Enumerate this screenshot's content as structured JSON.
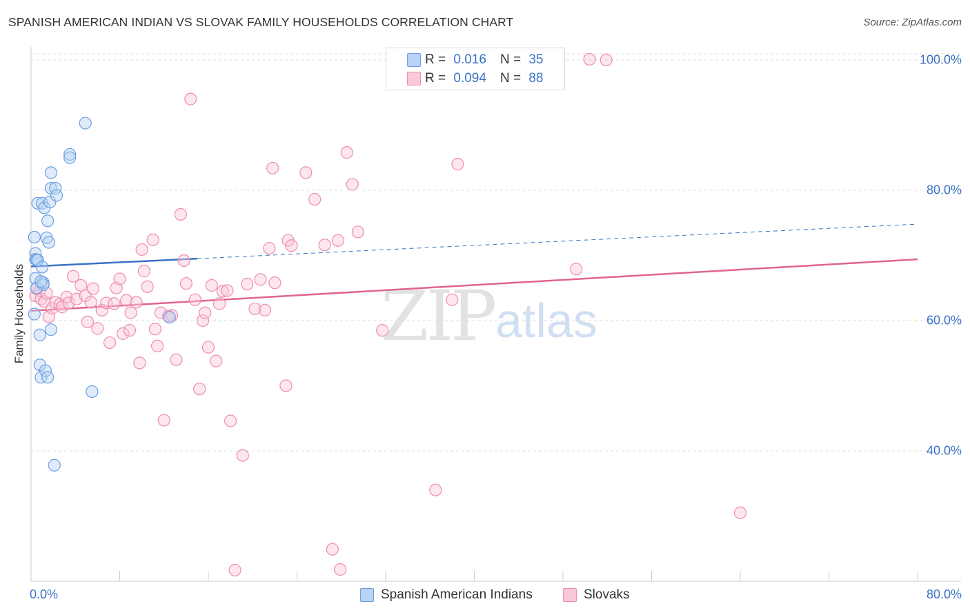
{
  "header": {
    "title": "SPANISH AMERICAN INDIAN VS SLOVAK FAMILY HOUSEHOLDS CORRELATION CHART",
    "source": "Source: ZipAtlas.com"
  },
  "watermark": {
    "zip": "ZIP",
    "atlas": "atlas"
  },
  "legend_top": [
    {
      "r_label": "R =",
      "r_value": "0.016",
      "n_label": "N =",
      "n_value": "35"
    },
    {
      "r_label": "R =",
      "r_value": "0.094",
      "n_label": "N =",
      "n_value": "88"
    }
  ],
  "colors": {
    "blue": "#6b9fe0",
    "blue_line": "#3a72c5",
    "pink": "#ee8cae",
    "pink_line": "#e0648f",
    "tick_text": "#3a72c5"
  },
  "chart_data": {
    "type": "scatter",
    "title": "SPANISH AMERICAN INDIAN VS SLOVAK FAMILY HOUSEHOLDS CORRELATION CHART",
    "xlabel": "",
    "ylabel": "Family Households",
    "xlim": [
      0,
      80
    ],
    "ylim": [
      20,
      102
    ],
    "x_tick_labels": [
      "0.0%",
      "80.0%"
    ],
    "y_tick_labels": [
      "40.0%",
      "60.0%",
      "80.0%",
      "100.0%"
    ],
    "y_ticks": [
      40,
      60,
      80,
      100
    ],
    "grid": true,
    "legend": "bottom-center",
    "series": [
      {
        "name": "Spanish American Indians",
        "color": "blue",
        "trend": {
          "x0": 0,
          "y0": 68.3,
          "x1": 15,
          "y1": 69.5,
          "dash_x1": 80,
          "dash_y1": 74.8
        },
        "points": [
          [
            0.3,
            72.8
          ],
          [
            0.4,
            70.3
          ],
          [
            0.4,
            69.4
          ],
          [
            0.5,
            69.3
          ],
          [
            0.6,
            69.3
          ],
          [
            0.4,
            66.5
          ],
          [
            0.5,
            65.0
          ],
          [
            0.3,
            61.0
          ],
          [
            0.6,
            78.0
          ],
          [
            0.8,
            57.8
          ],
          [
            0.8,
            53.2
          ],
          [
            0.9,
            51.3
          ],
          [
            1.0,
            68.2
          ],
          [
            1.0,
            78.0
          ],
          [
            1.1,
            65.8
          ],
          [
            1.1,
            65.5
          ],
          [
            1.2,
            77.3
          ],
          [
            1.3,
            52.3
          ],
          [
            1.4,
            72.7
          ],
          [
            1.5,
            51.3
          ],
          [
            1.5,
            75.3
          ],
          [
            1.6,
            72.0
          ],
          [
            1.7,
            78.2
          ],
          [
            1.8,
            80.3
          ],
          [
            1.8,
            58.6
          ],
          [
            1.8,
            82.7
          ],
          [
            2.1,
            37.8
          ],
          [
            2.2,
            80.3
          ],
          [
            2.3,
            79.2
          ],
          [
            3.5,
            85.5
          ],
          [
            3.5,
            85.0
          ],
          [
            4.9,
            90.3
          ],
          [
            5.5,
            49.1
          ],
          [
            12.5,
            60.5
          ],
          [
            0.9,
            66.0
          ]
        ]
      },
      {
        "name": "Slovaks",
        "color": "pink",
        "trend": {
          "x0": 0,
          "y0": 61.5,
          "x1": 80,
          "y1": 69.4
        },
        "points": [
          [
            0.4,
            63.8
          ],
          [
            0.5,
            64.9
          ],
          [
            0.8,
            64.6
          ],
          [
            0.9,
            63.3
          ],
          [
            1.2,
            62.9
          ],
          [
            1.4,
            64.2
          ],
          [
            1.6,
            60.6
          ],
          [
            1.9,
            61.9
          ],
          [
            2.2,
            62.8
          ],
          [
            2.6,
            62.5
          ],
          [
            2.8,
            62.1
          ],
          [
            3.2,
            63.6
          ],
          [
            3.4,
            62.7
          ],
          [
            3.8,
            66.8
          ],
          [
            4.1,
            63.3
          ],
          [
            4.5,
            65.4
          ],
          [
            4.9,
            63.8
          ],
          [
            5.1,
            59.8
          ],
          [
            5.4,
            62.8
          ],
          [
            5.6,
            64.9
          ],
          [
            6.0,
            58.8
          ],
          [
            6.4,
            61.6
          ],
          [
            6.8,
            62.7
          ],
          [
            7.1,
            56.6
          ],
          [
            7.5,
            62.6
          ],
          [
            7.7,
            65.0
          ],
          [
            8.0,
            66.4
          ],
          [
            8.3,
            58.0
          ],
          [
            8.6,
            63.1
          ],
          [
            8.9,
            58.5
          ],
          [
            9.0,
            61.2
          ],
          [
            9.5,
            62.8
          ],
          [
            9.8,
            53.5
          ],
          [
            10.0,
            70.9
          ],
          [
            10.2,
            67.6
          ],
          [
            10.5,
            65.2
          ],
          [
            11.0,
            72.4
          ],
          [
            11.2,
            58.7
          ],
          [
            11.4,
            56.1
          ],
          [
            11.7,
            61.2
          ],
          [
            12.0,
            44.7
          ],
          [
            12.4,
            60.7
          ],
          [
            12.7,
            60.8
          ],
          [
            13.1,
            54.0
          ],
          [
            13.5,
            76.3
          ],
          [
            13.8,
            69.2
          ],
          [
            14.0,
            65.7
          ],
          [
            14.4,
            94.0
          ],
          [
            14.8,
            63.2
          ],
          [
            15.2,
            49.5
          ],
          [
            15.5,
            60.0
          ],
          [
            15.7,
            61.2
          ],
          [
            16.0,
            55.9
          ],
          [
            16.3,
            65.4
          ],
          [
            16.7,
            53.8
          ],
          [
            17.0,
            62.6
          ],
          [
            17.3,
            64.5
          ],
          [
            17.7,
            64.6
          ],
          [
            18.0,
            44.6
          ],
          [
            18.4,
            21.7
          ],
          [
            19.1,
            39.3
          ],
          [
            19.5,
            65.6
          ],
          [
            20.2,
            61.8
          ],
          [
            20.7,
            66.3
          ],
          [
            21.1,
            61.6
          ],
          [
            21.5,
            71.1
          ],
          [
            21.8,
            83.4
          ],
          [
            22.0,
            65.8
          ],
          [
            23.0,
            50.0
          ],
          [
            23.2,
            72.3
          ],
          [
            23.5,
            71.5
          ],
          [
            24.8,
            82.7
          ],
          [
            25.6,
            78.6
          ],
          [
            26.5,
            71.6
          ],
          [
            27.2,
            24.9
          ],
          [
            27.7,
            72.3
          ],
          [
            27.9,
            21.8
          ],
          [
            28.5,
            85.8
          ],
          [
            29.0,
            80.9
          ],
          [
            29.5,
            73.6
          ],
          [
            31.7,
            58.5
          ],
          [
            36.5,
            34.0
          ],
          [
            38.0,
            63.2
          ],
          [
            38.5,
            84.0
          ],
          [
            49.2,
            67.9
          ],
          [
            50.4,
            100.1
          ],
          [
            51.9,
            100.0
          ],
          [
            64.0,
            30.5
          ]
        ]
      }
    ]
  }
}
